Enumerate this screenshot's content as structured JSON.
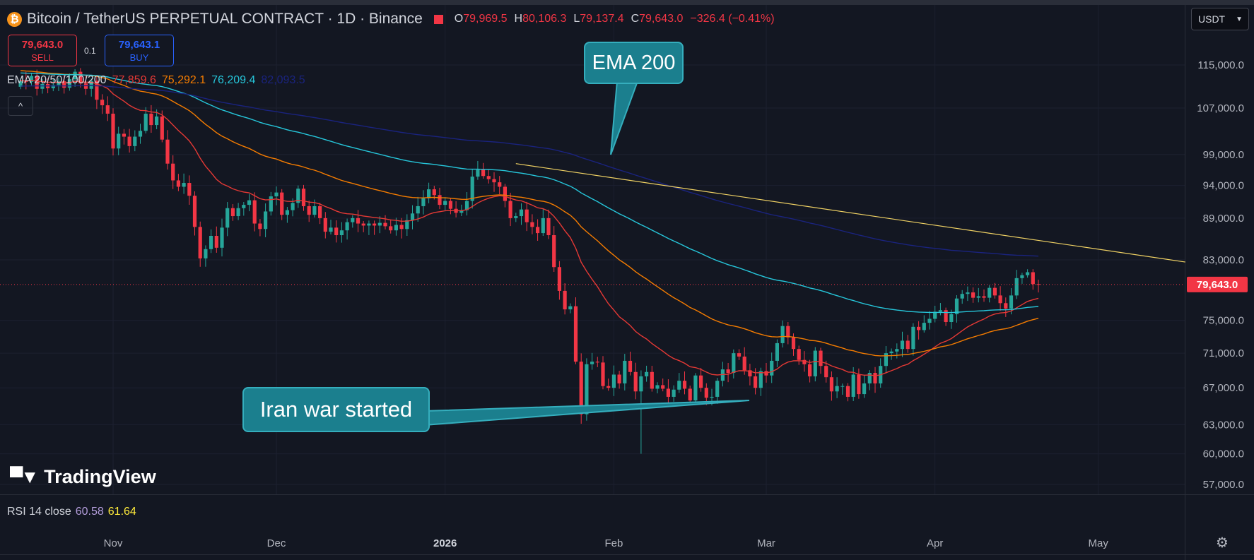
{
  "header": {
    "symbol_title": "Bitcoin / TetherUS PERPETUAL CONTRACT · 1D · Binance",
    "coin_glyph": "₿",
    "ohlc": {
      "o_label": "O",
      "o": "79,969.5",
      "h_label": "H",
      "h": "80,106.3",
      "l_label": "L",
      "l": "79,137.4",
      "c_label": "C",
      "c": "79,643.0",
      "change": "−326.4 (−0.41%)"
    }
  },
  "currency_selector": {
    "value": "USDT"
  },
  "trade": {
    "sell_price": "79,643.0",
    "sell_label": "SELL",
    "buy_price": "79,643.1",
    "buy_label": "BUY",
    "quantity": "0.1"
  },
  "ema_legend": {
    "label": "EMA 20/50/100/200",
    "ema20": "77,859.6",
    "ema50": "75,292.1",
    "ema100": "76,209.4",
    "ema200": "82,093.5"
  },
  "collapse_glyph": "^",
  "annotations": {
    "ema_callout": "EMA 200",
    "iran_callout": "Iran war started"
  },
  "branding": {
    "logo_text": "TradingView"
  },
  "rsi": {
    "label": "RSI 14 close",
    "value1": "60.58",
    "value2": "61.64"
  },
  "chart_data": {
    "type": "candlestick",
    "price_axis_ticks": [
      "115,000.0",
      "107,000.0",
      "99,000.0",
      "94,000.0",
      "89,000.0",
      "83,000.0",
      "75,000.0",
      "71,000.0",
      "67,000.0",
      "63,000.0",
      "60,000.0",
      "57,000.0"
    ],
    "price_axis_values": [
      115000,
      107000,
      99000,
      94000,
      89000,
      83000,
      75000,
      71000,
      67000,
      63000,
      60000,
      57000
    ],
    "last_price_label": "79,643.0",
    "last_price": 79643,
    "time_axis_labels": [
      "Nov",
      "Dec",
      "2026",
      "Feb",
      "Mar",
      "Apr",
      "May"
    ],
    "colors": {
      "up": "#26a69a",
      "down": "#f23645",
      "ema20": "#e53935",
      "ema50": "#f57c00",
      "ema100": "#26c6da",
      "ema200": "#1a237e",
      "trendline": "#f0d264",
      "background": "#131722"
    },
    "close_series": [
      112000,
      111800,
      112900,
      110500,
      111400,
      110600,
      111200,
      111900,
      110700,
      112300,
      113700,
      111500,
      110500,
      112000,
      108500,
      107500,
      106000,
      100000,
      102500,
      102000,
      100400,
      102000,
      103000,
      106000,
      104000,
      105500,
      101500,
      97500,
      94800,
      93800,
      94400,
      92400,
      87700,
      83200,
      84500,
      86400,
      84700,
      87600,
      90500,
      89300,
      90500,
      91000,
      91700,
      88200,
      87400,
      90000,
      92300,
      92900,
      89500,
      90200,
      91300,
      93500,
      90800,
      89500,
      90800,
      89000,
      87000,
      87600,
      86500,
      87200,
      88400,
      89000,
      88200,
      87900,
      88200,
      87900,
      88300,
      87800,
      87200,
      88000,
      87400,
      88700,
      89700,
      90800,
      92000,
      93400,
      92500,
      91000,
      91600,
      90400,
      89800,
      90200,
      91600,
      95400,
      96500,
      95500,
      95000,
      94500,
      93800,
      91600,
      89000,
      89300,
      90300,
      88400,
      87700,
      86800,
      89000,
      86500,
      82000,
      78800,
      76400,
      76800,
      70000,
      64100,
      69700,
      70000,
      69900,
      67200,
      67000,
      68500,
      67500,
      70100,
      68800,
      66600,
      68300,
      68800,
      66900,
      67300,
      66900,
      66000,
      66800,
      67800,
      66900,
      65600,
      68400,
      67000,
      65900,
      66000,
      67800,
      69100,
      68700,
      71000,
      70600,
      69000,
      68300,
      67000,
      68900,
      68400,
      70100,
      72200,
      74300,
      72900,
      71500,
      70200,
      69700,
      68300,
      71300,
      69500,
      68200,
      66600,
      67200,
      67200,
      66000,
      68500,
      66300,
      67500,
      68700,
      67500,
      69500,
      71000,
      71200,
      71500,
      72500,
      71500,
      74200,
      73800,
      74700,
      75200,
      76100,
      76300,
      74800,
      75800,
      77800,
      78400,
      78600,
      77900,
      78100,
      77900,
      79200,
      78200,
      77200,
      76500,
      78200,
      80500,
      80900,
      81300,
      79700,
      79643
    ],
    "trendline": {
      "from": {
        "date": "2026-01-14",
        "price": 97500
      },
      "to": {
        "date": "2026-05-17",
        "price": 82700
      }
    }
  }
}
